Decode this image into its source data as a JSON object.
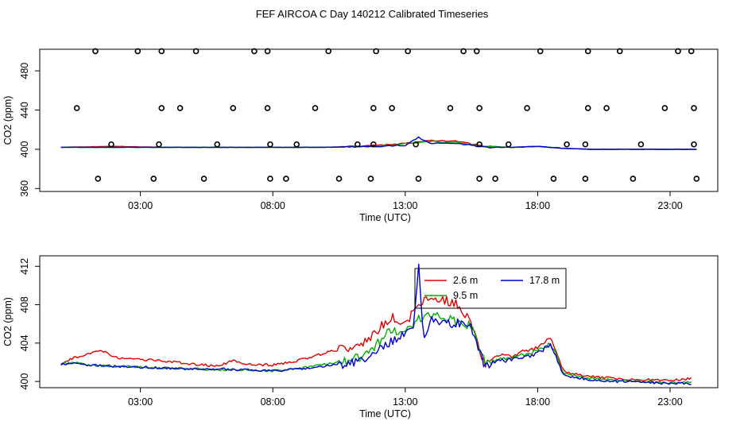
{
  "title": "FEF AIRCOA C  Day 140212  Calibrated Timeseries",
  "chart_data": [
    {
      "type": "scatter",
      "xlabel": "Time (UTC)",
      "ylabel": "CO2 (ppm)",
      "xlim": [
        -0.8,
        24.8
      ],
      "ylim": [
        357,
        502
      ],
      "x_ticks": [
        3,
        8,
        13,
        18,
        23
      ],
      "x_tick_labels": [
        "03:00",
        "08:00",
        "13:00",
        "18:00",
        "23:00"
      ],
      "y_ticks": [
        360,
        400,
        440,
        480
      ],
      "y_tick_labels": [
        "360",
        "400",
        "440",
        "480"
      ],
      "calibration_points": {
        "x": [
          2.9,
          1.3,
          3.8,
          5.1,
          7.3,
          7.8,
          10.1,
          11.9,
          13.1,
          15.2,
          15.7,
          18.1,
          19.9,
          21.1,
          23.3,
          23.8,
          0.6,
          3.8,
          4.5,
          6.5,
          7.8,
          9.6,
          11.8,
          12.5,
          14.7,
          15.8,
          17.6,
          19.9,
          20.6,
          22.8,
          23.9,
          1.9,
          3.7,
          5.9,
          7.9,
          8.9,
          11.2,
          11.8,
          13.4,
          15.8,
          16.9,
          19.1,
          19.8,
          21.9,
          23.9,
          1.4,
          3.5,
          5.4,
          7.9,
          8.5,
          10.5,
          11.7,
          13.5,
          15.8,
          16.4,
          18.6,
          19.8,
          21.6,
          24.0
        ],
        "y": [
          500,
          500,
          500,
          500,
          500,
          500,
          500,
          500,
          500,
          500,
          500,
          500,
          500,
          500,
          500,
          500,
          442,
          442,
          442,
          442,
          442,
          442,
          442,
          442,
          442,
          442,
          442,
          442,
          442,
          442,
          442,
          405,
          405,
          405,
          405,
          405,
          405,
          405,
          405,
          405,
          405,
          405,
          405,
          405,
          405,
          370,
          370,
          370,
          370,
          370,
          370,
          370,
          370,
          370,
          370,
          370,
          370,
          370,
          370
        ]
      },
      "series": [
        {
          "name": "2.6 m",
          "color": "#e00000",
          "x": [
            0,
            2,
            4,
            6,
            8,
            10,
            12,
            13,
            14,
            15,
            16,
            17,
            18,
            19,
            20,
            22,
            24
          ],
          "values": [
            402,
            403,
            402,
            402,
            402,
            402,
            404,
            406,
            409,
            408,
            403,
            402,
            403,
            401,
            400,
            400,
            400
          ]
        },
        {
          "name": "9.5 m",
          "color": "#00b000",
          "x": [
            0,
            2,
            4,
            6,
            8,
            10,
            12,
            13,
            14,
            15,
            16,
            17,
            18,
            19,
            20,
            22,
            24
          ],
          "values": [
            402,
            402,
            402,
            402,
            402,
            402,
            403,
            406,
            408,
            407,
            403,
            402,
            403,
            401,
            400,
            400,
            400
          ]
        },
        {
          "name": "17.8 m",
          "color": "#0000d0",
          "x": [
            0,
            2,
            4,
            6,
            8,
            10,
            12,
            13,
            13.5,
            14,
            15,
            16,
            17,
            18,
            19,
            20,
            22,
            24
          ],
          "values": [
            402,
            402,
            402,
            402,
            402,
            402,
            403,
            404,
            412,
            406,
            406,
            402,
            402,
            403,
            401,
            400,
            400,
            400
          ]
        }
      ]
    },
    {
      "type": "line",
      "xlabel": "Time (UTC)",
      "ylabel": "CO2 (ppm)",
      "xlim": [
        -0.8,
        24.8
      ],
      "ylim": [
        399.35,
        413.1
      ],
      "x_ticks": [
        3,
        8,
        13,
        18,
        23
      ],
      "x_tick_labels": [
        "03:00",
        "08:00",
        "13:00",
        "18:00",
        "23:00"
      ],
      "y_ticks": [
        400,
        404,
        408,
        412
      ],
      "y_tick_labels": [
        "400",
        "404",
        "408",
        "412"
      ],
      "legend": {
        "position": "top-center",
        "entries": [
          "2.6 m",
          "9.5 m",
          "17.8 m"
        ]
      },
      "series": [
        {
          "name": "2.6 m",
          "color": "#e00000",
          "x": [
            0,
            0.5,
            1,
            1.5,
            2,
            3,
            4,
            5,
            6,
            6.5,
            7,
            8,
            9,
            10,
            11,
            11.5,
            12,
            12.5,
            13,
            13.5,
            14,
            14.5,
            15,
            15.5,
            16,
            16.5,
            17,
            17.5,
            18,
            18.5,
            19,
            20,
            21,
            22,
            23,
            23.8
          ],
          "values": [
            401.8,
            402.5,
            402.8,
            403.3,
            402.5,
            402.3,
            402.1,
            401.8,
            401.6,
            402.2,
            401.8,
            401.7,
            402.2,
            403.0,
            403.6,
            404.2,
            405.5,
            406.8,
            405.8,
            408.2,
            409.0,
            408.5,
            408.0,
            406.0,
            401.8,
            402.8,
            402.7,
            403.2,
            403.5,
            404.5,
            401.0,
            400.5,
            400.3,
            400.2,
            400.1,
            400.3
          ]
        },
        {
          "name": "9.5 m",
          "color": "#00b000",
          "x": [
            0,
            0.5,
            1,
            2,
            3,
            4,
            5,
            6,
            7,
            8,
            9,
            10,
            11,
            11.5,
            12,
            12.5,
            13,
            13.5,
            14,
            14.5,
            15,
            15.5,
            16,
            16.5,
            17,
            17.5,
            18,
            18.5,
            19,
            20,
            21,
            22,
            23,
            23.8
          ],
          "values": [
            401.8,
            402.0,
            401.7,
            401.6,
            401.5,
            401.4,
            401.3,
            401.2,
            401.2,
            401.1,
            401.4,
            401.8,
            402.3,
            402.8,
            404.0,
            405.5,
            405.0,
            406.5,
            407.0,
            406.5,
            406.2,
            405.8,
            401.9,
            402.2,
            402.5,
            402.8,
            403.2,
            403.9,
            400.8,
            400.3,
            400.1,
            400.0,
            399.9,
            399.9
          ]
        },
        {
          "name": "17.8 m",
          "color": "#0000d0",
          "x": [
            0,
            0.5,
            1,
            2,
            3,
            4,
            5,
            6,
            7,
            8,
            9,
            10,
            11,
            11.5,
            12,
            12.5,
            13,
            13.3,
            13.5,
            13.7,
            14,
            14.5,
            15,
            15.5,
            16,
            16.5,
            17,
            17.5,
            18,
            18.5,
            19,
            20,
            21,
            22,
            23,
            23.8
          ],
          "values": [
            401.8,
            402.0,
            401.7,
            401.6,
            401.5,
            401.4,
            401.3,
            401.3,
            401.2,
            401.1,
            401.3,
            401.6,
            401.9,
            402.3,
            403.2,
            404.3,
            404.8,
            405.5,
            412.3,
            404.5,
            406.5,
            406.0,
            406.2,
            405.5,
            401.7,
            402.1,
            402.3,
            402.5,
            403.0,
            403.8,
            400.6,
            400.2,
            400.0,
            399.9,
            399.8,
            399.8
          ]
        }
      ]
    }
  ]
}
